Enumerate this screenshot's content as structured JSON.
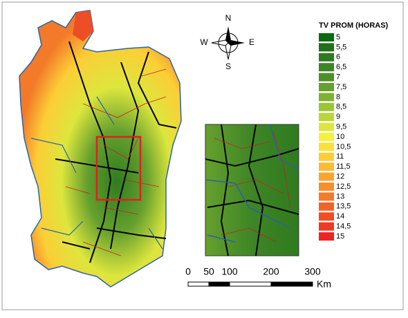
{
  "legend": {
    "title": "TV PROM (HORAS)",
    "items": [
      {
        "label": "5",
        "color": "#0b6a10"
      },
      {
        "label": "5,5",
        "color": "#1f7218"
      },
      {
        "label": "6",
        "color": "#2f7b1f"
      },
      {
        "label": "6,5",
        "color": "#3e8526"
      },
      {
        "label": "7",
        "color": "#4e8f2a"
      },
      {
        "label": "7,5",
        "color": "#66a02e"
      },
      {
        "label": "8",
        "color": "#7fb232"
      },
      {
        "label": "8,5",
        "color": "#9cc436"
      },
      {
        "label": "9",
        "color": "#bcd63a"
      },
      {
        "label": "9,5",
        "color": "#dde63d"
      },
      {
        "label": "10",
        "color": "#f7f03e"
      },
      {
        "label": "10,5",
        "color": "#fbe03a"
      },
      {
        "label": "11",
        "color": "#fcce36"
      },
      {
        "label": "11,5",
        "color": "#fbbb33"
      },
      {
        "label": "12",
        "color": "#f9a52f"
      },
      {
        "label": "12,5",
        "color": "#f68f2c"
      },
      {
        "label": "13",
        "color": "#f37a29"
      },
      {
        "label": "13,5",
        "color": "#f06427"
      },
      {
        "label": "14",
        "color": "#ee4e25"
      },
      {
        "label": "14,5",
        "color": "#ec3a24"
      },
      {
        "label": "15",
        "color": "#ea2523"
      }
    ]
  },
  "compass": {
    "north": "N",
    "east": "E",
    "south": "S",
    "west": "W"
  },
  "scale_bar": {
    "ticks": [
      0,
      50,
      100,
      200,
      300
    ],
    "unit": "Km"
  }
}
